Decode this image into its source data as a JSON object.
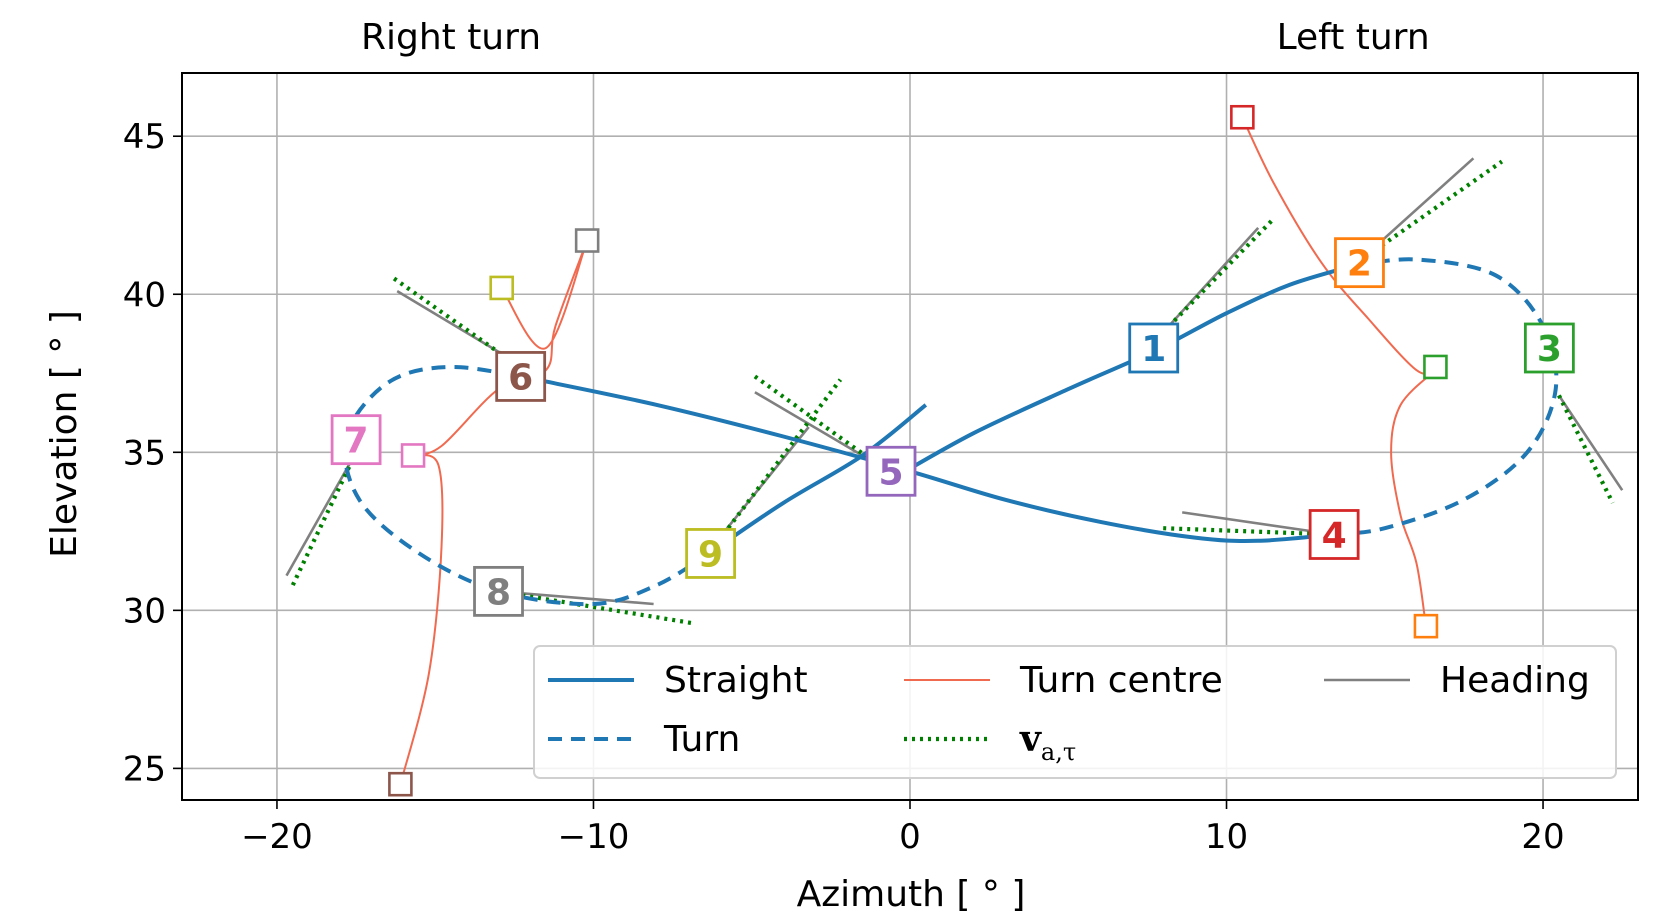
{
  "chart_data": {
    "type": "line",
    "title": "",
    "xlabel": "Azimuth [ ° ]",
    "ylabel": "Elevation [ ° ]",
    "xlim": [
      -23,
      23
    ],
    "ylim": [
      24,
      47
    ],
    "xticks": [
      -20,
      -10,
      0,
      10,
      20
    ],
    "xtick_labels": [
      "−20",
      "−10",
      "0",
      "10",
      "20"
    ],
    "yticks": [
      25,
      30,
      35,
      40,
      45
    ],
    "ytick_labels": [
      "25",
      "30",
      "35",
      "40",
      "45"
    ],
    "grid": true,
    "legend_position": "lower-right",
    "annotations_top": [
      {
        "text": "Right turn",
        "x": -14.5
      },
      {
        "text": "Left turn",
        "x": 14
      }
    ],
    "colors": {
      "straight": "#1f77b4",
      "turn": "#1f77b4",
      "turn_centre": "#f06a50",
      "heading": "#808080",
      "velocity": "#008000"
    },
    "legend": [
      {
        "key": "straight",
        "label": "Straight",
        "style": "solid"
      },
      {
        "key": "turn_centre",
        "label": "Turn centre",
        "style": "thin"
      },
      {
        "key": "heading",
        "label": "Heading",
        "style": "thin"
      },
      {
        "key": "turn",
        "label": "Turn",
        "style": "dashed"
      },
      {
        "key": "velocity",
        "label": "v",
        "subscript": "a,τ",
        "style": "dotted"
      }
    ],
    "series": [
      {
        "key": "straight",
        "segments": [
          [
            [
              -11.8,
              37.3
            ],
            [
              -8,
              36.5
            ],
            [
              -4,
              35.5
            ],
            [
              0,
              34.4
            ],
            [
              3,
              33.5
            ],
            [
              6,
              32.8
            ],
            [
              9,
              32.3
            ],
            [
              11,
              32.2
            ],
            [
              13.4,
              32.4
            ]
          ],
          [
            [
              -6.5,
              31.7
            ],
            [
              -4,
              33.4
            ],
            [
              -1.5,
              34.9
            ],
            [
              0.5,
              36.5
            ]
          ],
          [
            [
              -0.5,
              34.2
            ],
            [
              2,
              35.6
            ],
            [
              5,
              37.0
            ],
            [
              7.7,
              38.2
            ],
            [
              10,
              39.4
            ],
            [
              12,
              40.3
            ],
            [
              14,
              40.9
            ]
          ]
        ]
      },
      {
        "key": "turn",
        "segments": [
          [
            [
              14,
              40.9
            ],
            [
              16,
              41.1
            ],
            [
              18.5,
              40.6
            ],
            [
              20,
              39.0
            ],
            [
              20.4,
              37.0
            ],
            [
              19.5,
              35.0
            ],
            [
              17.5,
              33.5
            ],
            [
              15,
              32.6
            ],
            [
              13.4,
              32.4
            ]
          ],
          [
            [
              -11.8,
              37.3
            ],
            [
              -14.5,
              37.7
            ],
            [
              -16.5,
              37.2
            ],
            [
              -17.8,
              35.5
            ],
            [
              -17.4,
              33.5
            ],
            [
              -15.5,
              31.8
            ],
            [
              -13,
              30.6
            ],
            [
              -10,
              30.2
            ],
            [
              -8,
              30.8
            ],
            [
              -6.5,
              31.7
            ]
          ]
        ]
      },
      {
        "key": "turn_centre",
        "segments": [
          [
            [
              10.5,
              45.6
            ],
            [
              11.5,
              43.5
            ],
            [
              13,
              41
            ],
            [
              14.5,
              39.2
            ],
            [
              16,
              37.6
            ],
            [
              16.6,
              37.6
            ]
          ],
          [
            [
              16.6,
              37.6
            ],
            [
              15.5,
              36.5
            ],
            [
              15.2,
              35
            ],
            [
              15.5,
              33
            ],
            [
              16,
              31.5
            ],
            [
              16.3,
              29.5
            ]
          ],
          [
            [
              -10.2,
              41.7
            ],
            [
              -11.2,
              39
            ],
            [
              -11.5,
              37.6
            ],
            [
              -13,
              37
            ],
            [
              -14.8,
              35.2
            ],
            [
              -15.7,
              34.9
            ]
          ],
          [
            [
              -15.7,
              34.9
            ],
            [
              -14.9,
              34.6
            ],
            [
              -14.8,
              32
            ],
            [
              -15.2,
              28
            ],
            [
              -16.1,
              24.5
            ]
          ],
          [
            [
              -12.9,
              40.2
            ],
            [
              -11.5,
              38.3
            ],
            [
              -10.2,
              41.7
            ]
          ]
        ]
      },
      {
        "key": "heading",
        "segments": [
          [
            [
              8.0,
              38.8
            ],
            [
              11.0,
              42.1
            ]
          ],
          [
            [
              14.8,
              41.6
            ],
            [
              17.8,
              44.3
            ]
          ],
          [
            [
              20.5,
              36.8
            ],
            [
              22.5,
              33.8
            ]
          ],
          [
            [
              8.6,
              33.1
            ],
            [
              13.4,
              32.4
            ]
          ],
          [
            [
              -4.9,
              36.9
            ],
            [
              -1,
              34.6
            ]
          ],
          [
            [
              -6.5,
              31.7
            ],
            [
              -3.2,
              35.8
            ]
          ],
          [
            [
              -16.2,
              40.1
            ],
            [
              -12.2,
              37.7
            ]
          ],
          [
            [
              -19.7,
              31.1
            ],
            [
              -17.5,
              35
            ]
          ],
          [
            [
              -13,
              30.6
            ],
            [
              -8.1,
              30.2
            ]
          ]
        ]
      },
      {
        "key": "velocity",
        "segments": [
          [
            [
              8.0,
              38.8
            ],
            [
              11.5,
              42.4
            ]
          ],
          [
            [
              14.7,
              41.4
            ],
            [
              18.7,
              44.2
            ]
          ],
          [
            [
              20.5,
              36.8
            ],
            [
              22.2,
              33.4
            ]
          ],
          [
            [
              8,
              32.6
            ],
            [
              13.4,
              32.4
            ]
          ],
          [
            [
              -4.9,
              37.4
            ],
            [
              -1,
              34.6
            ]
          ],
          [
            [
              -6.5,
              31.6
            ],
            [
              -2.2,
              37.3
            ]
          ],
          [
            [
              -16.3,
              40.5
            ],
            [
              -12.2,
              37.6
            ]
          ],
          [
            [
              -19.5,
              30.8
            ],
            [
              -17.5,
              35
            ]
          ],
          [
            [
              -13,
              30.6
            ],
            [
              -6.9,
              29.6
            ]
          ]
        ]
      }
    ],
    "markers": [
      {
        "label": "1",
        "x": 7.7,
        "y": 38.3,
        "color": "#1f77b4"
      },
      {
        "label": "2",
        "x": 14.2,
        "y": 41.0,
        "color": "#ff7f0e"
      },
      {
        "label": "3",
        "x": 20.2,
        "y": 38.3,
        "color": "#2ca02c"
      },
      {
        "label": "4",
        "x": 13.4,
        "y": 32.4,
        "color": "#d62728"
      },
      {
        "label": "5",
        "x": -0.6,
        "y": 34.4,
        "color": "#9467bd"
      },
      {
        "label": "6",
        "x": -12.3,
        "y": 37.4,
        "color": "#8c564b"
      },
      {
        "label": "7",
        "x": -17.5,
        "y": 35.4,
        "color": "#e377c2"
      },
      {
        "label": "8",
        "x": -13.0,
        "y": 30.6,
        "color": "#7f7f7f"
      },
      {
        "label": "9",
        "x": -6.3,
        "y": 31.8,
        "color": "#bcbd22"
      }
    ],
    "centre_squares": [
      {
        "x": 10.5,
        "y": 45.6,
        "color": "#d62728"
      },
      {
        "x": 16.6,
        "y": 37.7,
        "color": "#2ca02c"
      },
      {
        "x": 16.3,
        "y": 29.5,
        "color": "#ff7f0e"
      },
      {
        "x": -10.2,
        "y": 41.7,
        "color": "#7f7f7f"
      },
      {
        "x": -12.9,
        "y": 40.2,
        "color": "#bcbd22"
      },
      {
        "x": -15.7,
        "y": 34.9,
        "color": "#e377c2"
      },
      {
        "x": -16.1,
        "y": 24.5,
        "color": "#8c564b"
      }
    ]
  }
}
